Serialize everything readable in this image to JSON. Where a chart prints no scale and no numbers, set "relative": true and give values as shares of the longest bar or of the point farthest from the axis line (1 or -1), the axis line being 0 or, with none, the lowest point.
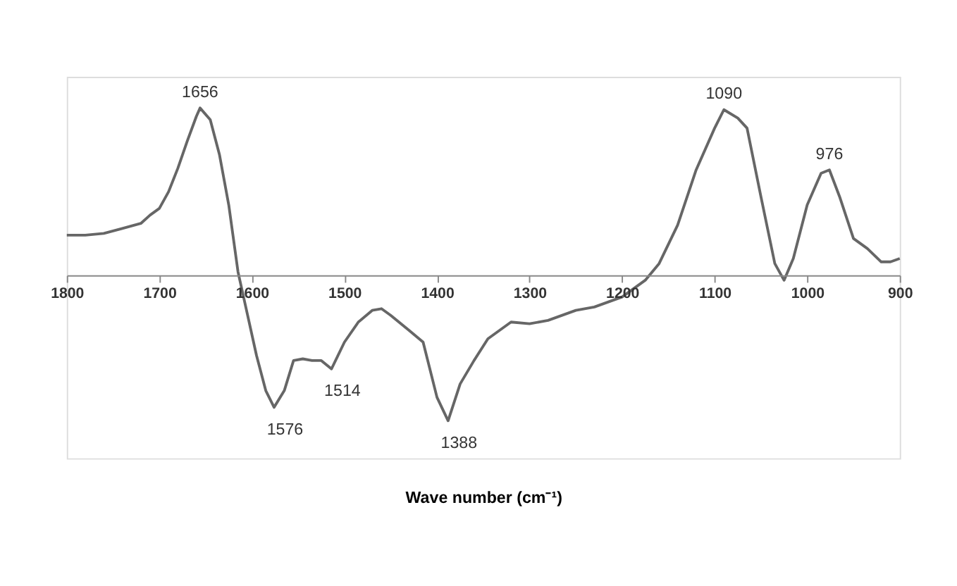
{
  "chart_data": {
    "type": "line",
    "relative": true,
    "xlabel": "Wave number (cm⁻¹)",
    "xlim": [
      1800,
      900
    ],
    "xticks": [
      1800,
      1700,
      1600,
      1500,
      1400,
      1300,
      1200,
      1100,
      1000,
      900
    ],
    "grid": false,
    "legend": false,
    "marker": "none",
    "line_style": "solid",
    "x": [
      1800,
      1780,
      1760,
      1740,
      1720,
      1710,
      1700,
      1690,
      1680,
      1670,
      1660,
      1656,
      1645,
      1635,
      1625,
      1615,
      1605,
      1595,
      1585,
      1576,
      1565,
      1555,
      1545,
      1535,
      1525,
      1514,
      1500,
      1485,
      1470,
      1460,
      1450,
      1430,
      1415,
      1400,
      1388,
      1375,
      1360,
      1345,
      1320,
      1300,
      1280,
      1250,
      1230,
      1200,
      1175,
      1160,
      1140,
      1120,
      1100,
      1090,
      1075,
      1065,
      1050,
      1035,
      1025,
      1015,
      1000,
      985,
      976,
      965,
      950,
      935,
      920,
      910,
      900
    ],
    "series": [
      {
        "color": "#666666",
        "values": [
          0.24,
          0.24,
          0.25,
          0.28,
          0.31,
          0.36,
          0.4,
          0.5,
          0.64,
          0.8,
          0.95,
          1.0,
          0.93,
          0.72,
          0.42,
          0.02,
          -0.23,
          -0.48,
          -0.69,
          -0.79,
          -0.69,
          -0.51,
          -0.5,
          -0.51,
          -0.51,
          -0.56,
          -0.4,
          -0.28,
          -0.21,
          -0.2,
          -0.24,
          -0.33,
          -0.4,
          -0.73,
          -0.87,
          -0.65,
          -0.51,
          -0.38,
          -0.28,
          -0.29,
          -0.27,
          -0.21,
          -0.19,
          -0.13,
          -0.03,
          0.07,
          0.3,
          0.63,
          0.88,
          0.99,
          0.94,
          0.88,
          0.47,
          0.07,
          -0.03,
          0.1,
          0.42,
          0.61,
          0.63,
          0.47,
          0.22,
          0.16,
          0.08,
          0.08,
          0.1
        ]
      }
    ],
    "annotations": [
      {
        "text": "1656",
        "x": 1656,
        "y": 1.0
      },
      {
        "text": "1576",
        "x": 1576,
        "y": -0.79
      },
      {
        "text": "1514",
        "x": 1514,
        "y": -0.56
      },
      {
        "text": "1388",
        "x": 1388,
        "y": -0.87
      },
      {
        "text": "1090",
        "x": 1090,
        "y": 0.99
      },
      {
        "text": "976",
        "x": 976,
        "y": 0.63
      }
    ]
  }
}
